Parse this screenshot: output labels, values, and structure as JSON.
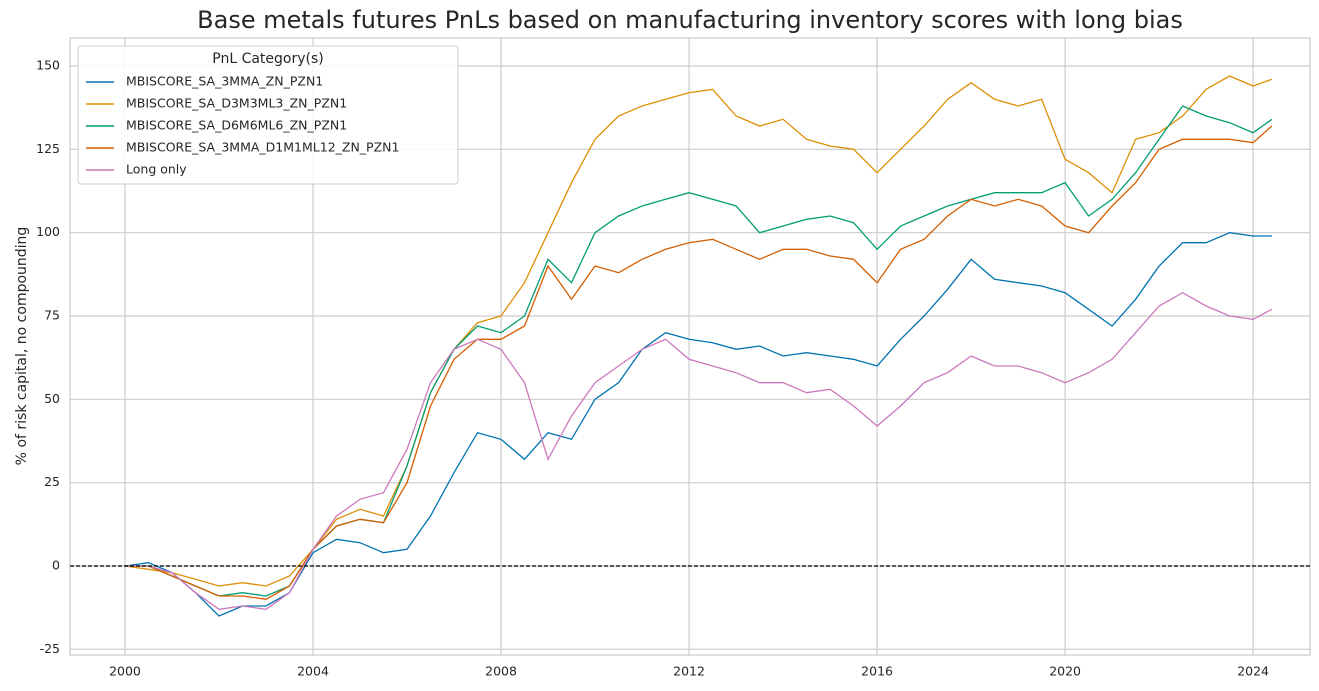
{
  "chart_data": {
    "type": "line",
    "title": "Base metals futures PnLs based on manufacturing inventory scores with long bias",
    "y_label": "% of risk capital, no compounding",
    "legend_title": "PnL Category(s)",
    "legend_position": "upper left",
    "grid": true,
    "reference_line": 0,
    "xlim": [
      1998.83,
      2025.21
    ],
    "ylim": [
      -26.7,
      158.4
    ],
    "xticks": [
      2000,
      2004,
      2008,
      2012,
      2016,
      2020,
      2024
    ],
    "yticks": [
      -25,
      0,
      25,
      50,
      75,
      100,
      125,
      150
    ],
    "x": [
      2000,
      2000.5,
      2001,
      2001.5,
      2002,
      2002.5,
      2003,
      2003.5,
      2004,
      2004.5,
      2005,
      2005.5,
      2006,
      2006.5,
      2007,
      2007.5,
      2008,
      2008.5,
      2009,
      2009.5,
      2010,
      2010.5,
      2011,
      2011.5,
      2012,
      2012.5,
      2013,
      2013.5,
      2014,
      2014.5,
      2015,
      2015.5,
      2016,
      2016.5,
      2017,
      2017.5,
      2018,
      2018.5,
      2019,
      2019.5,
      2020,
      2020.5,
      2021,
      2021.5,
      2022,
      2022.5,
      2023,
      2023.5,
      2024,
      2024.4
    ],
    "series": [
      {
        "name": "MBISCORE_SA_3MMA_ZN_PZN1",
        "color": "#0173b2",
        "values": [
          0,
          1,
          -2,
          -8,
          -15,
          -12,
          -12,
          -8,
          4,
          8,
          7,
          4,
          5,
          15,
          28,
          40,
          38,
          32,
          40,
          38,
          50,
          55,
          65,
          70,
          68,
          67,
          65,
          66,
          63,
          64,
          63,
          62,
          60,
          68,
          75,
          83,
          92,
          86,
          85,
          84,
          82,
          77,
          72,
          80,
          90,
          97,
          97,
          100,
          99,
          99
        ]
      },
      {
        "name": "MBISCORE_SA_D3M3ML3_ZN_PZN1",
        "color": "#de8f05",
        "values": [
          0,
          -1,
          -2,
          -4,
          -6,
          -5,
          -6,
          -3,
          5,
          14,
          17,
          15,
          30,
          52,
          65,
          73,
          75,
          85,
          100,
          115,
          128,
          135,
          138,
          140,
          142,
          143,
          135,
          132,
          134,
          128,
          126,
          125,
          118,
          125,
          132,
          140,
          145,
          140,
          138,
          140,
          122,
          118,
          112,
          128,
          130,
          135,
          143,
          147,
          144,
          146
        ]
      },
      {
        "name": "MBISCORE_SA_D6M6ML6_ZN_PZN1",
        "color": "#029e73",
        "values": [
          0,
          0,
          -3,
          -6,
          -9,
          -8,
          -9,
          -6,
          5,
          12,
          14,
          13,
          30,
          52,
          65,
          72,
          70,
          75,
          92,
          85,
          100,
          105,
          108,
          110,
          112,
          110,
          108,
          100,
          102,
          104,
          105,
          103,
          95,
          102,
          105,
          108,
          110,
          112,
          112,
          112,
          115,
          105,
          110,
          118,
          128,
          138,
          135,
          133,
          130,
          134
        ]
      },
      {
        "name": "MBISCORE_SA_3MMA_D1M1ML12_ZN_PZN1",
        "color": "#d55e00",
        "values": [
          0,
          0,
          -3,
          -6,
          -9,
          -9,
          -10,
          -6,
          5,
          12,
          14,
          13,
          25,
          48,
          62,
          68,
          68,
          72,
          90,
          80,
          90,
          88,
          92,
          95,
          97,
          98,
          95,
          92,
          95,
          95,
          93,
          92,
          85,
          95,
          98,
          105,
          110,
          108,
          110,
          108,
          102,
          100,
          108,
          115,
          125,
          128,
          128,
          128,
          127,
          132
        ]
      },
      {
        "name": "Long only",
        "color": "#cc78bc",
        "values": [
          0,
          0,
          -2,
          -8,
          -13,
          -12,
          -13,
          -8,
          5,
          15,
          20,
          22,
          35,
          55,
          65,
          68,
          65,
          55,
          32,
          45,
          55,
          60,
          65,
          68,
          62,
          60,
          58,
          55,
          55,
          52,
          53,
          48,
          42,
          48,
          55,
          58,
          63,
          60,
          60,
          58,
          55,
          58,
          62,
          70,
          78,
          82,
          78,
          75,
          74,
          77
        ]
      }
    ]
  }
}
